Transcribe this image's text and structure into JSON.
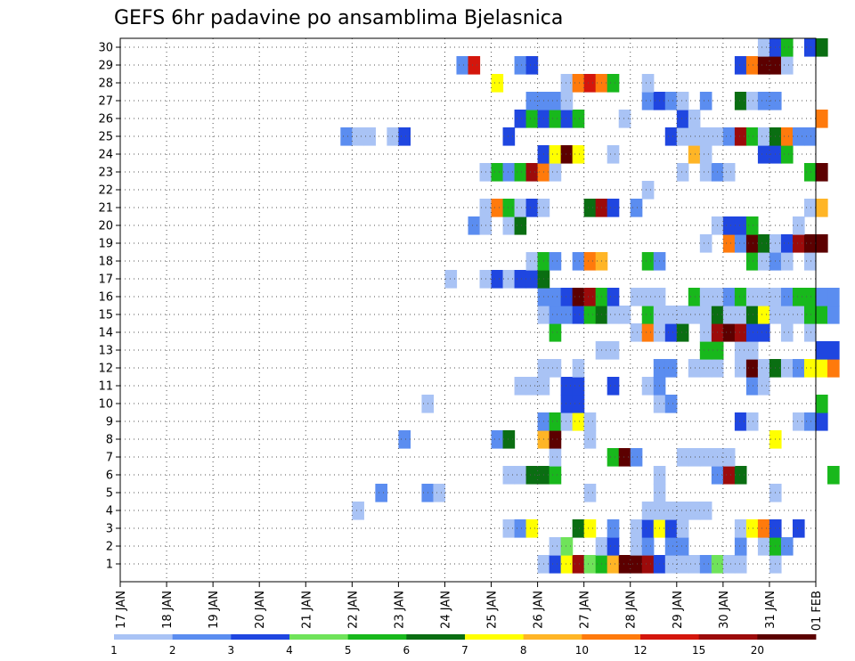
{
  "chart_data": {
    "type": "heatmap",
    "title": "GEFS 6hr padavine po ansamblima Bjelasnica",
    "xlabel": "",
    "ylabel": "",
    "x_tick_labels": [
      "17 JAN",
      "18 JAN",
      "19 JAN",
      "20 JAN",
      "21 JAN",
      "22 JAN",
      "23 JAN",
      "24 JAN",
      "25 JAN",
      "26 JAN",
      "27 JAN",
      "28 JAN",
      "29 JAN",
      "30 JAN",
      "31 JAN",
      "01 FEB"
    ],
    "y_tick_labels": [
      "1",
      "2",
      "3",
      "4",
      "5",
      "6",
      "7",
      "8",
      "9",
      "10",
      "11",
      "12",
      "13",
      "14",
      "15",
      "16",
      "17",
      "18",
      "19",
      "20",
      "21",
      "22",
      "23",
      "24",
      "25",
      "26",
      "27",
      "28",
      "29",
      "30"
    ],
    "grid": true,
    "legend": {
      "position": "bottom",
      "labels": [
        "1",
        "2",
        "3",
        "4",
        "5",
        "6",
        "7",
        "8",
        "10",
        "12",
        "15",
        "20"
      ],
      "colors": [
        "#a9c3f5",
        "#5b8df0",
        "#1f46e0",
        "#6fe35a",
        "#18b81c",
        "#0a6e12",
        "#ffff00",
        "#ffb526",
        "#ff7a0c",
        "#d4160c",
        "#9c0b0b",
        "#5c0000"
      ]
    },
    "cells_note_format": "[time_step_index_6h_from_17JAN_00UTC, ensemble_member, color_class_index]",
    "cells": [
      [
        36,
        1,
        0
      ],
      [
        37,
        1,
        2
      ],
      [
        38,
        1,
        6
      ],
      [
        39,
        1,
        10
      ],
      [
        40,
        1,
        3
      ],
      [
        41,
        1,
        4
      ],
      [
        42,
        1,
        7
      ],
      [
        43,
        1,
        11
      ],
      [
        44,
        1,
        11
      ],
      [
        45,
        1,
        10
      ],
      [
        46,
        1,
        2
      ],
      [
        47,
        1,
        0
      ],
      [
        48,
        1,
        0
      ],
      [
        49,
        1,
        0
      ],
      [
        50,
        1,
        1
      ],
      [
        51,
        1,
        3
      ],
      [
        52,
        1,
        0
      ],
      [
        53,
        1,
        0
      ],
      [
        56,
        1,
        0
      ],
      [
        37,
        2,
        0
      ],
      [
        38,
        2,
        3
      ],
      [
        41,
        2,
        0
      ],
      [
        42,
        2,
        2
      ],
      [
        44,
        2,
        0
      ],
      [
        45,
        2,
        1
      ],
      [
        47,
        2,
        1
      ],
      [
        48,
        2,
        1
      ],
      [
        53,
        2,
        1
      ],
      [
        55,
        2,
        0
      ],
      [
        56,
        2,
        4
      ],
      [
        57,
        2,
        1
      ],
      [
        33,
        3,
        0
      ],
      [
        34,
        3,
        1
      ],
      [
        35,
        3,
        6
      ],
      [
        39,
        3,
        5
      ],
      [
        40,
        3,
        6
      ],
      [
        42,
        3,
        1
      ],
      [
        44,
        3,
        0
      ],
      [
        45,
        3,
        2
      ],
      [
        46,
        3,
        6
      ],
      [
        47,
        3,
        2
      ],
      [
        48,
        3,
        0
      ],
      [
        53,
        3,
        0
      ],
      [
        54,
        3,
        6
      ],
      [
        55,
        3,
        8
      ],
      [
        56,
        3,
        2
      ],
      [
        58,
        3,
        2
      ],
      [
        20,
        4,
        0
      ],
      [
        45,
        4,
        0
      ],
      [
        46,
        4,
        0
      ],
      [
        47,
        4,
        0
      ],
      [
        48,
        4,
        0
      ],
      [
        49,
        4,
        0
      ],
      [
        50,
        4,
        0
      ],
      [
        22,
        5,
        1
      ],
      [
        26,
        5,
        1
      ],
      [
        27,
        5,
        0
      ],
      [
        40,
        5,
        0
      ],
      [
        46,
        5,
        0
      ],
      [
        56,
        5,
        0
      ],
      [
        33,
        6,
        0
      ],
      [
        34,
        6,
        0
      ],
      [
        35,
        6,
        5
      ],
      [
        36,
        6,
        5
      ],
      [
        37,
        6,
        4
      ],
      [
        46,
        6,
        0
      ],
      [
        51,
        6,
        1
      ],
      [
        52,
        6,
        10
      ],
      [
        53,
        6,
        5
      ],
      [
        61,
        6,
        4
      ],
      [
        37,
        7,
        0
      ],
      [
        42,
        7,
        4
      ],
      [
        43,
        7,
        11
      ],
      [
        44,
        7,
        1
      ],
      [
        48,
        7,
        0
      ],
      [
        49,
        7,
        0
      ],
      [
        50,
        7,
        0
      ],
      [
        51,
        7,
        0
      ],
      [
        52,
        7,
        0
      ],
      [
        24,
        8,
        1
      ],
      [
        32,
        8,
        1
      ],
      [
        33,
        8,
        5
      ],
      [
        36,
        8,
        7
      ],
      [
        37,
        8,
        11
      ],
      [
        40,
        8,
        0
      ],
      [
        56,
        8,
        6
      ],
      [
        36,
        9,
        1
      ],
      [
        37,
        9,
        4
      ],
      [
        38,
        9,
        0
      ],
      [
        39,
        9,
        6
      ],
      [
        40,
        9,
        0
      ],
      [
        53,
        9,
        2
      ],
      [
        54,
        9,
        0
      ],
      [
        58,
        9,
        0
      ],
      [
        59,
        9,
        1
      ],
      [
        60,
        9,
        2
      ],
      [
        26,
        10,
        0
      ],
      [
        38,
        10,
        2
      ],
      [
        39,
        10,
        2
      ],
      [
        46,
        10,
        0
      ],
      [
        47,
        10,
        1
      ],
      [
        60,
        10,
        4
      ],
      [
        34,
        11,
        0
      ],
      [
        35,
        11,
        0
      ],
      [
        36,
        11,
        0
      ],
      [
        38,
        11,
        2
      ],
      [
        39,
        11,
        2
      ],
      [
        42,
        11,
        2
      ],
      [
        45,
        11,
        0
      ],
      [
        46,
        11,
        1
      ],
      [
        54,
        11,
        1
      ],
      [
        55,
        11,
        0
      ],
      [
        36,
        12,
        0
      ],
      [
        37,
        12,
        0
      ],
      [
        39,
        12,
        0
      ],
      [
        46,
        12,
        1
      ],
      [
        47,
        12,
        1
      ],
      [
        49,
        12,
        0
      ],
      [
        50,
        12,
        0
      ],
      [
        51,
        12,
        0
      ],
      [
        53,
        12,
        0
      ],
      [
        54,
        12,
        11
      ],
      [
        55,
        12,
        0
      ],
      [
        56,
        12,
        5
      ],
      [
        57,
        12,
        0
      ],
      [
        58,
        12,
        1
      ],
      [
        59,
        12,
        6
      ],
      [
        60,
        12,
        6
      ],
      [
        61,
        12,
        8
      ],
      [
        41,
        13,
        0
      ],
      [
        42,
        13,
        0
      ],
      [
        50,
        13,
        4
      ],
      [
        51,
        13,
        4
      ],
      [
        53,
        13,
        0
      ],
      [
        54,
        13,
        0
      ],
      [
        60,
        13,
        2
      ],
      [
        61,
        13,
        2
      ],
      [
        37,
        14,
        4
      ],
      [
        44,
        14,
        0
      ],
      [
        45,
        14,
        8
      ],
      [
        46,
        14,
        0
      ],
      [
        47,
        14,
        2
      ],
      [
        48,
        14,
        5
      ],
      [
        50,
        14,
        0
      ],
      [
        51,
        14,
        10
      ],
      [
        52,
        14,
        11
      ],
      [
        53,
        14,
        10
      ],
      [
        54,
        14,
        2
      ],
      [
        55,
        14,
        2
      ],
      [
        57,
        14,
        0
      ],
      [
        59,
        14,
        0
      ],
      [
        36,
        15,
        0
      ],
      [
        37,
        15,
        1
      ],
      [
        38,
        15,
        1
      ],
      [
        39,
        15,
        2
      ],
      [
        40,
        15,
        4
      ],
      [
        41,
        15,
        5
      ],
      [
        42,
        15,
        0
      ],
      [
        43,
        15,
        0
      ],
      [
        45,
        15,
        4
      ],
      [
        46,
        15,
        0
      ],
      [
        47,
        15,
        0
      ],
      [
        48,
        15,
        0
      ],
      [
        49,
        15,
        0
      ],
      [
        50,
        15,
        0
      ],
      [
        51,
        15,
        5
      ],
      [
        52,
        15,
        0
      ],
      [
        53,
        15,
        0
      ],
      [
        54,
        15,
        5
      ],
      [
        55,
        15,
        6
      ],
      [
        56,
        15,
        0
      ],
      [
        57,
        15,
        0
      ],
      [
        58,
        15,
        0
      ],
      [
        59,
        15,
        4
      ],
      [
        60,
        15,
        4
      ],
      [
        61,
        15,
        1
      ],
      [
        36,
        16,
        1
      ],
      [
        37,
        16,
        1
      ],
      [
        38,
        16,
        2
      ],
      [
        39,
        16,
        11
      ],
      [
        40,
        16,
        10
      ],
      [
        41,
        16,
        4
      ],
      [
        42,
        16,
        2
      ],
      [
        44,
        16,
        0
      ],
      [
        45,
        16,
        0
      ],
      [
        46,
        16,
        0
      ],
      [
        49,
        16,
        4
      ],
      [
        50,
        16,
        0
      ],
      [
        51,
        16,
        0
      ],
      [
        52,
        16,
        1
      ],
      [
        53,
        16,
        4
      ],
      [
        54,
        16,
        0
      ],
      [
        55,
        16,
        0
      ],
      [
        56,
        16,
        0
      ],
      [
        57,
        16,
        1
      ],
      [
        58,
        16,
        4
      ],
      [
        59,
        16,
        4
      ],
      [
        60,
        16,
        1
      ],
      [
        61,
        16,
        1
      ],
      [
        28,
        17,
        0
      ],
      [
        31,
        17,
        0
      ],
      [
        32,
        17,
        2
      ],
      [
        33,
        17,
        0
      ],
      [
        34,
        17,
        2
      ],
      [
        35,
        17,
        2
      ],
      [
        36,
        17,
        5
      ],
      [
        35,
        18,
        0
      ],
      [
        36,
        18,
        4
      ],
      [
        37,
        18,
        1
      ],
      [
        39,
        18,
        1
      ],
      [
        40,
        18,
        8
      ],
      [
        41,
        18,
        7
      ],
      [
        45,
        18,
        4
      ],
      [
        46,
        18,
        1
      ],
      [
        54,
        18,
        4
      ],
      [
        55,
        18,
        0
      ],
      [
        56,
        18,
        1
      ],
      [
        57,
        18,
        0
      ],
      [
        59,
        18,
        0
      ],
      [
        50,
        19,
        0
      ],
      [
        52,
        19,
        8
      ],
      [
        53,
        19,
        1
      ],
      [
        54,
        19,
        11
      ],
      [
        55,
        19,
        5
      ],
      [
        56,
        19,
        0
      ],
      [
        57,
        19,
        2
      ],
      [
        58,
        19,
        10
      ],
      [
        59,
        19,
        11
      ],
      [
        60,
        19,
        11
      ],
      [
        30,
        20,
        1
      ],
      [
        31,
        20,
        0
      ],
      [
        33,
        20,
        0
      ],
      [
        34,
        20,
        5
      ],
      [
        51,
        20,
        0
      ],
      [
        52,
        20,
        2
      ],
      [
        53,
        20,
        2
      ],
      [
        54,
        20,
        4
      ],
      [
        58,
        20,
        0
      ],
      [
        31,
        21,
        0
      ],
      [
        32,
        21,
        8
      ],
      [
        33,
        21,
        4
      ],
      [
        34,
        21,
        0
      ],
      [
        35,
        21,
        2
      ],
      [
        36,
        21,
        0
      ],
      [
        40,
        21,
        5
      ],
      [
        41,
        21,
        10
      ],
      [
        42,
        21,
        2
      ],
      [
        44,
        21,
        1
      ],
      [
        59,
        21,
        0
      ],
      [
        60,
        21,
        7
      ],
      [
        45,
        22,
        0
      ],
      [
        31,
        23,
        0
      ],
      [
        32,
        23,
        4
      ],
      [
        33,
        23,
        1
      ],
      [
        34,
        23,
        4
      ],
      [
        35,
        23,
        10
      ],
      [
        36,
        23,
        8
      ],
      [
        37,
        23,
        0
      ],
      [
        48,
        23,
        0
      ],
      [
        50,
        23,
        0
      ],
      [
        51,
        23,
        1
      ],
      [
        52,
        23,
        0
      ],
      [
        59,
        23,
        4
      ],
      [
        60,
        23,
        11
      ],
      [
        36,
        24,
        2
      ],
      [
        37,
        24,
        6
      ],
      [
        38,
        24,
        11
      ],
      [
        39,
        24,
        6
      ],
      [
        42,
        24,
        0
      ],
      [
        49,
        24,
        7
      ],
      [
        50,
        24,
        0
      ],
      [
        55,
        24,
        2
      ],
      [
        56,
        24,
        2
      ],
      [
        57,
        24,
        4
      ],
      [
        19,
        25,
        1
      ],
      [
        20,
        25,
        0
      ],
      [
        21,
        25,
        0
      ],
      [
        23,
        25,
        0
      ],
      [
        24,
        25,
        2
      ],
      [
        33,
        25,
        2
      ],
      [
        47,
        25,
        2
      ],
      [
        48,
        25,
        0
      ],
      [
        49,
        25,
        0
      ],
      [
        50,
        25,
        0
      ],
      [
        51,
        25,
        0
      ],
      [
        52,
        25,
        1
      ],
      [
        53,
        25,
        10
      ],
      [
        54,
        25,
        4
      ],
      [
        55,
        25,
        0
      ],
      [
        56,
        25,
        5
      ],
      [
        57,
        25,
        8
      ],
      [
        58,
        25,
        1
      ],
      [
        59,
        25,
        1
      ],
      [
        34,
        26,
        2
      ],
      [
        35,
        26,
        4
      ],
      [
        36,
        26,
        2
      ],
      [
        37,
        26,
        4
      ],
      [
        38,
        26,
        2
      ],
      [
        39,
        26,
        4
      ],
      [
        43,
        26,
        0
      ],
      [
        48,
        26,
        2
      ],
      [
        49,
        26,
        0
      ],
      [
        60,
        26,
        8
      ],
      [
        35,
        27,
        1
      ],
      [
        36,
        27,
        1
      ],
      [
        37,
        27,
        1
      ],
      [
        38,
        27,
        0
      ],
      [
        45,
        27,
        1
      ],
      [
        46,
        27,
        2
      ],
      [
        47,
        27,
        1
      ],
      [
        48,
        27,
        0
      ],
      [
        50,
        27,
        1
      ],
      [
        53,
        27,
        5
      ],
      [
        54,
        27,
        0
      ],
      [
        55,
        27,
        1
      ],
      [
        56,
        27,
        1
      ],
      [
        32,
        28,
        6
      ],
      [
        38,
        28,
        0
      ],
      [
        39,
        28,
        8
      ],
      [
        40,
        28,
        9
      ],
      [
        41,
        28,
        8
      ],
      [
        42,
        28,
        4
      ],
      [
        45,
        28,
        0
      ],
      [
        29,
        29,
        1
      ],
      [
        30,
        29,
        9
      ],
      [
        34,
        29,
        1
      ],
      [
        35,
        29,
        2
      ],
      [
        53,
        29,
        2
      ],
      [
        54,
        29,
        8
      ],
      [
        55,
        29,
        11
      ],
      [
        56,
        29,
        11
      ],
      [
        57,
        29,
        0
      ],
      [
        55,
        30,
        0
      ],
      [
        56,
        30,
        2
      ],
      [
        57,
        30,
        4
      ],
      [
        59,
        30,
        2
      ],
      [
        60,
        30,
        5
      ]
    ]
  }
}
